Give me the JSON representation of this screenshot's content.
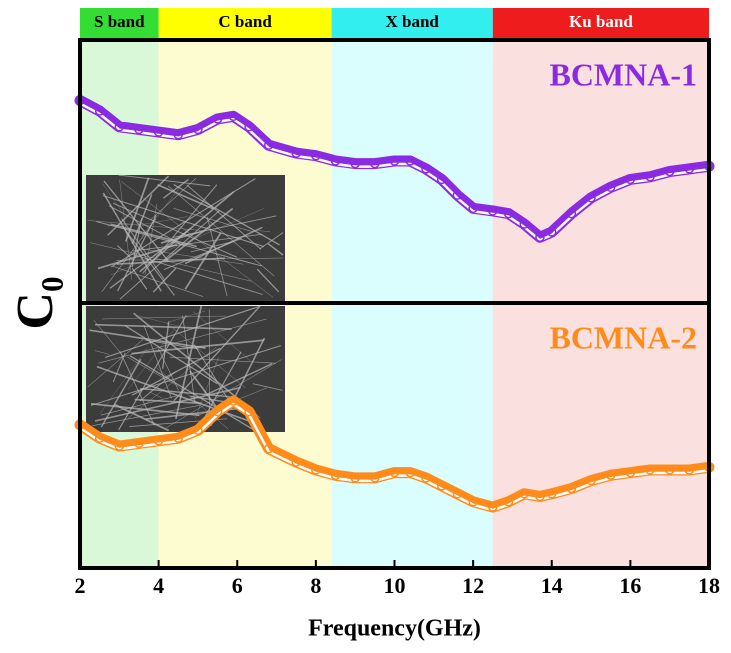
{
  "chart_data": [
    {
      "type": "line",
      "bands": [
        {
          "label": "S band",
          "start": 2,
          "end": 4,
          "color": "#33dd33",
          "fill": "#d8f8d8"
        },
        {
          "label": "C band",
          "start": 4,
          "end": 8.4,
          "color": "#ffff00",
          "fill": "#fdfbd0"
        },
        {
          "label": "X band",
          "start": 8.4,
          "end": 12.5,
          "color": "#33eeee",
          "fill": "#dafdfd"
        },
        {
          "label": "Ku band",
          "start": 12.5,
          "end": 18,
          "color": "#ee1c1c",
          "fill": "#fbe0e0"
        }
      ],
      "xlim": [
        2,
        18
      ],
      "ylim": [
        0,
        1
      ],
      "x": [
        2,
        2.5,
        3,
        3.5,
        4,
        4.5,
        5,
        5.5,
        5.9,
        6.3,
        6.8,
        7.5,
        8,
        8.5,
        9,
        9.5,
        10,
        10.4,
        10.8,
        11.2,
        11.6,
        12,
        12.5,
        12.9,
        13.3,
        13.7,
        14,
        14.5,
        15,
        15.5,
        16,
        16.5,
        17,
        17.5,
        18
      ],
      "series": [
        {
          "name": "BCMNA-1",
          "color": "#8a2be2",
          "values": [
            0.77,
            0.73,
            0.67,
            0.66,
            0.65,
            0.64,
            0.66,
            0.7,
            0.71,
            0.67,
            0.6,
            0.57,
            0.56,
            0.54,
            0.53,
            0.53,
            0.54,
            0.54,
            0.51,
            0.47,
            0.41,
            0.36,
            0.35,
            0.34,
            0.3,
            0.25,
            0.27,
            0.34,
            0.4,
            0.44,
            0.47,
            0.48,
            0.5,
            0.51,
            0.52
          ]
        }
      ]
    },
    {
      "type": "line",
      "ylabel": "C₀",
      "xlabel": "Frequency(GHz)",
      "xlim": [
        2,
        18
      ],
      "xticks": [
        2,
        4,
        6,
        8,
        10,
        12,
        14,
        16,
        18
      ],
      "ylim": [
        0,
        1
      ],
      "x": [
        2,
        2.5,
        3,
        3.5,
        4,
        4.5,
        5,
        5.5,
        5.9,
        6.3,
        6.8,
        7.5,
        8,
        8.5,
        9,
        9.5,
        10,
        10.4,
        10.8,
        11.2,
        11.6,
        12,
        12.5,
        12.9,
        13.3,
        13.7,
        14,
        14.5,
        15,
        15.5,
        16,
        16.5,
        17,
        17.5,
        18
      ],
      "series": [
        {
          "name": "BCMNA-2",
          "color": "#ff8c1a",
          "values": [
            0.54,
            0.49,
            0.46,
            0.47,
            0.48,
            0.49,
            0.52,
            0.59,
            0.63,
            0.59,
            0.45,
            0.4,
            0.37,
            0.35,
            0.34,
            0.34,
            0.36,
            0.36,
            0.34,
            0.31,
            0.28,
            0.25,
            0.23,
            0.25,
            0.28,
            0.27,
            0.28,
            0.3,
            0.33,
            0.35,
            0.36,
            0.37,
            0.37,
            0.37,
            0.38
          ]
        }
      ]
    }
  ]
}
